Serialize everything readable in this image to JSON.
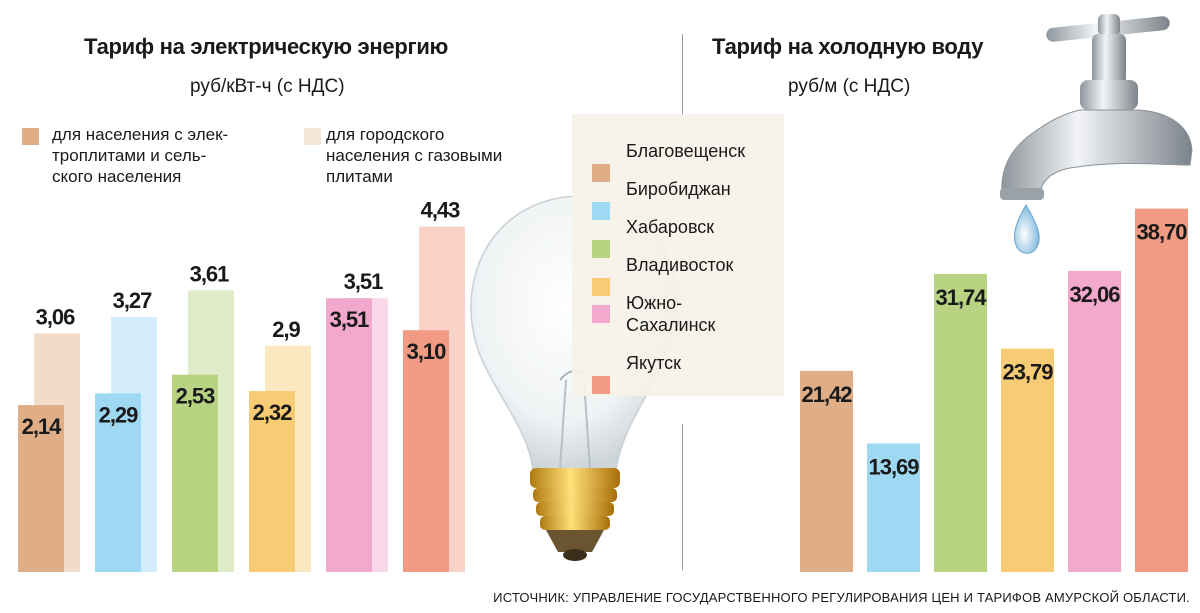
{
  "colors": {
    "Благовещенск": "#dfae86",
    "Биробиджан": "#9fd8f3",
    "Хабаровск": "#b8d483",
    "Владивосток": "#f7cc74",
    "Южно-Сахалинск": "#f2a9cd",
    "Якутск": "#f29b84"
  },
  "electricity": {
    "title": "Тариф на электрическую энергию",
    "unit": "руб/кВт-ч (с НДС)",
    "legend_rural": "для населения с элек-\nтроплитами и сель-\nского населения",
    "legend_gas": "для городского\nнаселения с газовыми\nплитами"
  },
  "water": {
    "title": "Тариф на холодную воду",
    "unit": "руб/м (с НДС)"
  },
  "cities_legend": [
    "Благовещенск",
    "Биробиджан",
    "Хабаровск",
    "Владивосток",
    "Южно-\nСахалинск",
    "Якутск"
  ],
  "source": "ИСТОЧНИК: УПРАВЛЕНИЕ ГОСУДАРСТВЕННОГО РЕГУЛИРОВАНИЯ ЦЕН И ТАРИФОВ АМУРСКОЙ ОБЛАСТИ.",
  "chart_data": [
    {
      "type": "bar",
      "title": "Тариф на электрическую энергию",
      "ylabel": "руб/кВт-ч (с НДС)",
      "ylim": [
        0,
        5.2
      ],
      "categories": [
        "Благовещенск",
        "Биробиджан",
        "Хабаровск",
        "Владивосток",
        "Южно-Сахалинск",
        "Якутск"
      ],
      "series": [
        {
          "name": "для населения с электроплитами и сельского населения",
          "values": [
            2.14,
            2.29,
            2.53,
            2.32,
            3.51,
            3.1
          ],
          "labels": [
            "2,14",
            "2,29",
            "2,53",
            "2,32",
            "3,51",
            "3,10"
          ]
        },
        {
          "name": "для городского населения с газовыми плитами",
          "values": [
            3.06,
            3.27,
            3.61,
            2.9,
            3.51,
            4.43
          ],
          "labels": [
            "3,06",
            "3,27",
            "3,61",
            "2,9",
            "3,51",
            "4,43"
          ]
        }
      ]
    },
    {
      "type": "bar",
      "title": "Тариф на холодную воду",
      "ylabel": "руб/м (с НДС)",
      "ylim": [
        0,
        43
      ],
      "categories": [
        "Благовещенск",
        "Биробиджан",
        "Хабаровск",
        "Владивосток",
        "Южно-Сахалинск",
        "Якутск"
      ],
      "values": [
        21.42,
        13.69,
        31.74,
        23.79,
        32.06,
        38.7
      ],
      "labels": [
        "21,42",
        "13,69",
        "31,74",
        "23,79",
        "32,06",
        "38,70"
      ]
    }
  ]
}
